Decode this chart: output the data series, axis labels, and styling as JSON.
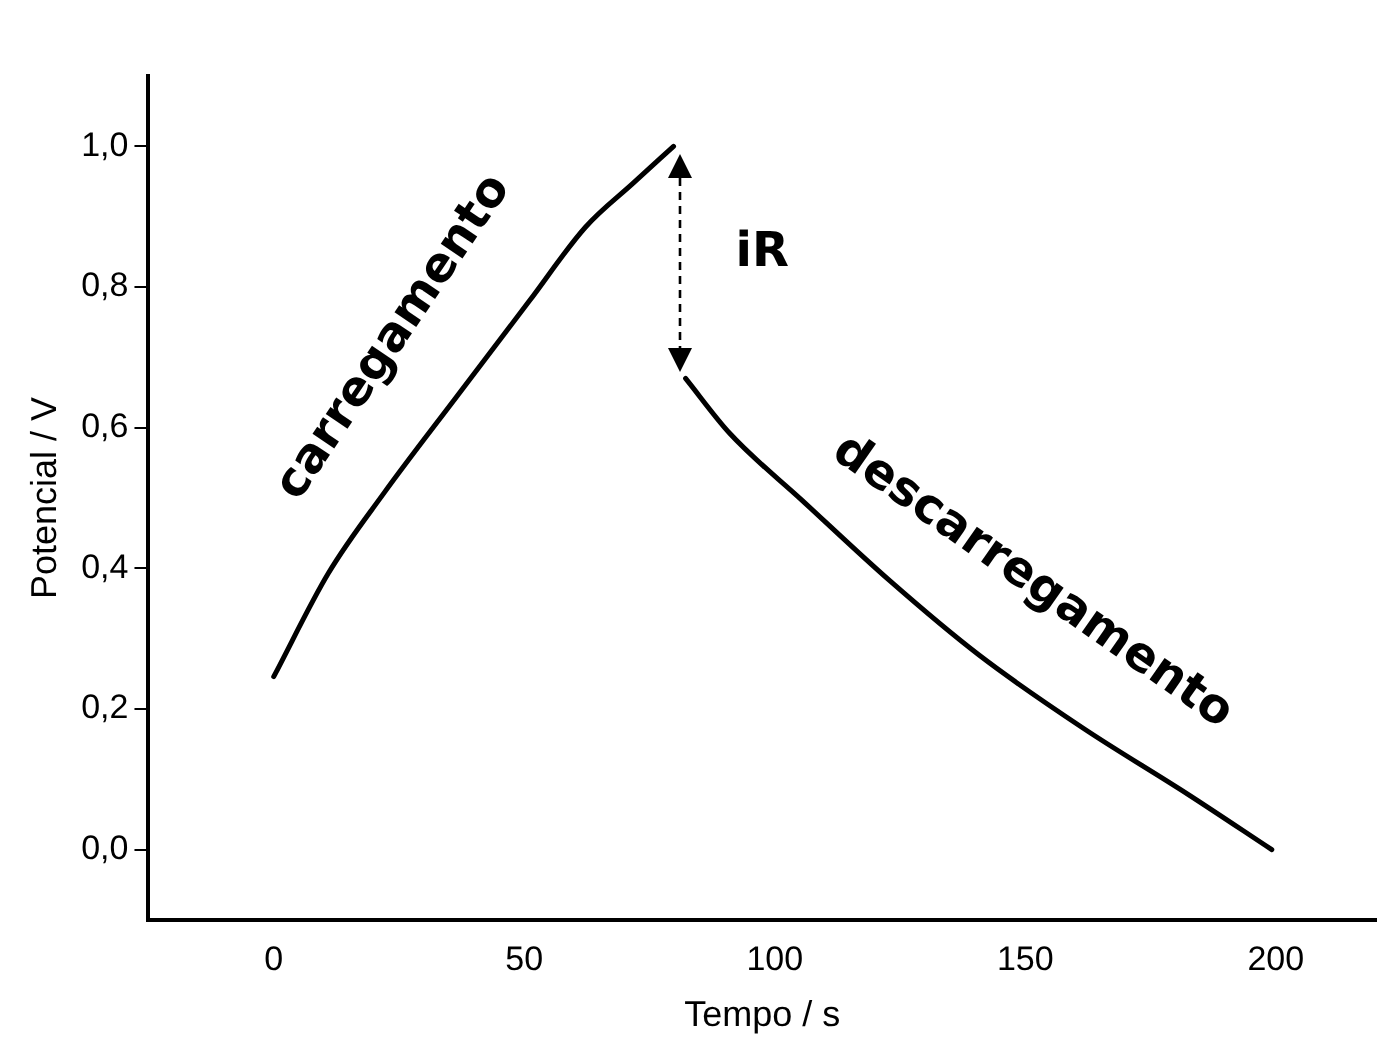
{
  "chart_data": {
    "type": "line",
    "xlabel": "Tempo / s",
    "ylabel": "Potencial / V",
    "xlim": [
      -25,
      220
    ],
    "xticks": [
      0,
      50,
      100,
      150,
      200
    ],
    "ylim": [
      -0.1,
      1.1
    ],
    "yticks": [
      {
        "value": 0,
        "label": "0,0"
      },
      {
        "value": 0.2,
        "label": "0,2"
      },
      {
        "value": 0.4,
        "label": "0,4"
      },
      {
        "value": 0.6,
        "label": "0,6"
      },
      {
        "value": 0.8,
        "label": "0,8"
      },
      {
        "value": 1,
        "label": "1,0"
      }
    ],
    "series": [
      {
        "color": "#000000",
        "x": [
          0,
          10.9,
          22.1,
          36.5,
          51,
          62.2,
          71.8,
          79.8
        ],
        "values": [
          0.246,
          0.393,
          0.508,
          0.644,
          0.78,
          0.885,
          0.948,
          1.0
        ]
      },
      {
        "color": "#000000",
        "x": [
          82.2,
          91,
          105.4,
          123,
          140.7,
          161.5,
          182.4,
          199.2
        ],
        "values": [
          0.67,
          0.592,
          0.497,
          0.382,
          0.277,
          0.173,
          0.079,
          0.0
        ]
      }
    ],
    "annotations": [
      "carregamento",
      "descarregamento",
      "iR"
    ],
    "grid": false,
    "legend": false,
    "marker": "none",
    "line_style": "solid"
  }
}
